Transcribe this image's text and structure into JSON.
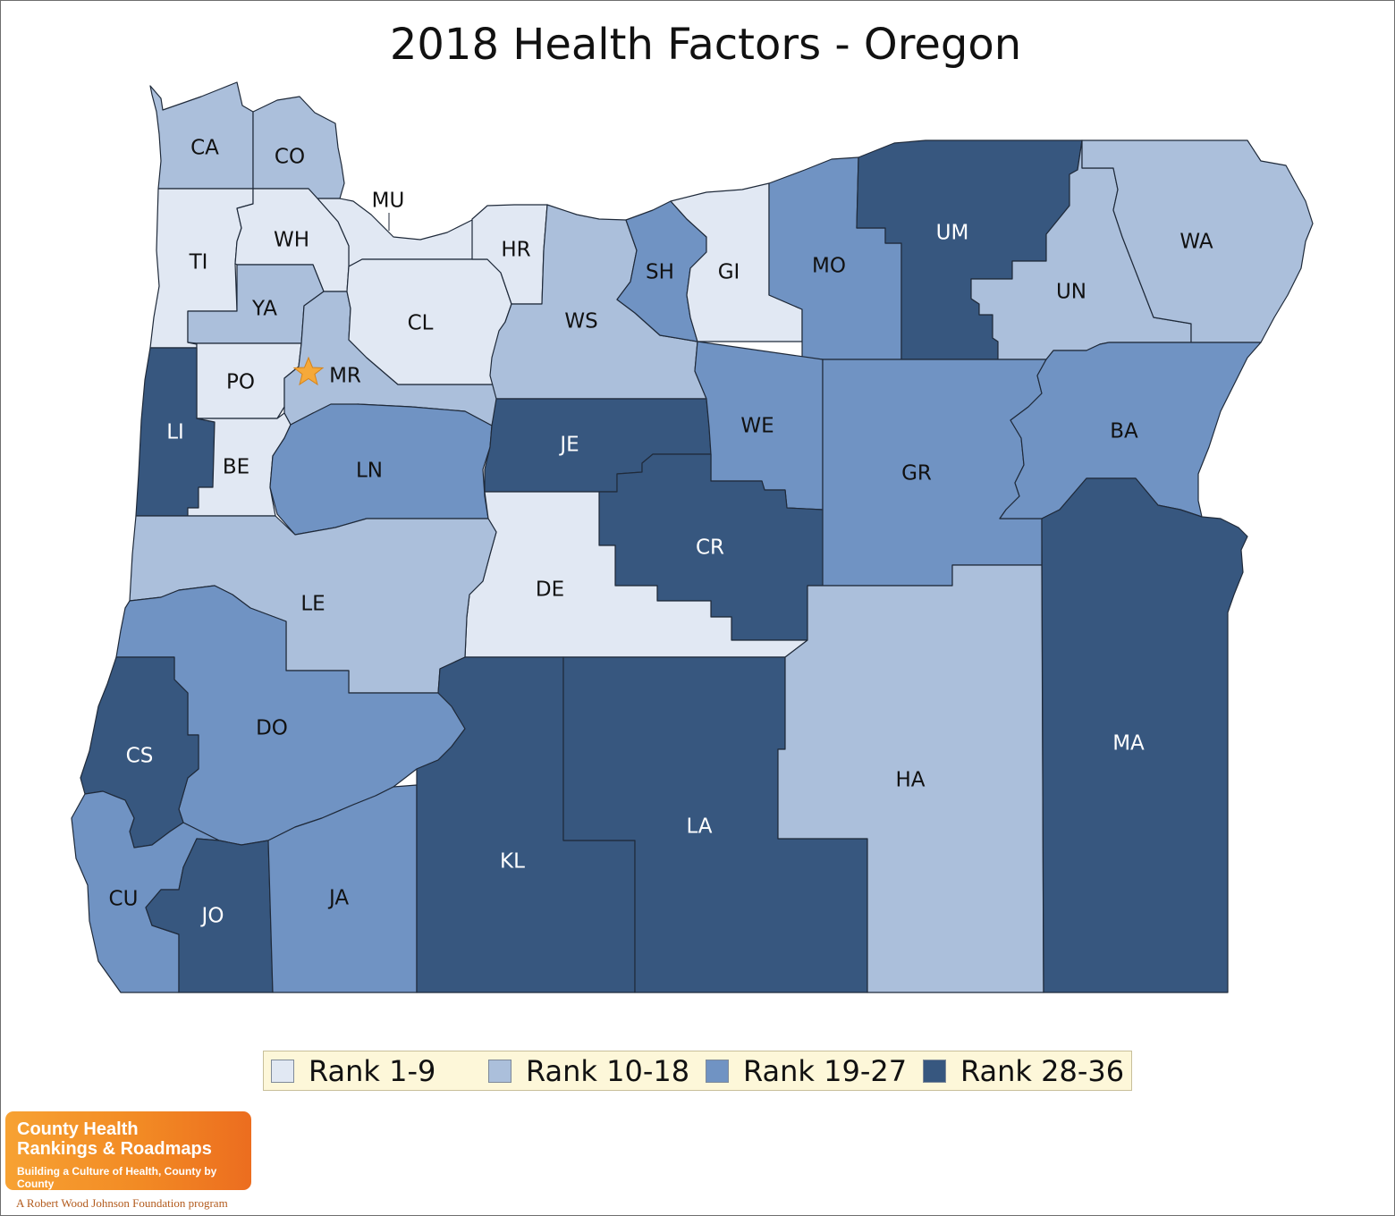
{
  "title": "2018 Health Factors - Oregon",
  "colors": {
    "rank_1_9": "#e1e8f3",
    "rank_10_18": "#abbfdb",
    "rank_19_27": "#7093c3",
    "rank_28_36": "#37577f",
    "text_dark": "#111111",
    "text_light": "#ffffff",
    "capital_star": "#f5a93a"
  },
  "legend": {
    "items": [
      {
        "label": "Rank 1-9",
        "color": "#e1e8f3"
      },
      {
        "label": "Rank 10-18",
        "color": "#abbfdb"
      },
      {
        "label": "Rank 19-27",
        "color": "#7093c3"
      },
      {
        "label": "Rank 28-36",
        "color": "#37577f"
      }
    ]
  },
  "counties": {
    "CA": {
      "label": "CA",
      "rank_group": "10-18"
    },
    "CO": {
      "label": "CO",
      "rank_group": "10-18"
    },
    "MU": {
      "label": "MU",
      "rank_group": "1-9"
    },
    "TI": {
      "label": "TI",
      "rank_group": "1-9"
    },
    "WH": {
      "label": "WH",
      "rank_group": "1-9"
    },
    "YA": {
      "label": "YA",
      "rank_group": "10-18"
    },
    "PO": {
      "label": "PO",
      "rank_group": "1-9"
    },
    "MR": {
      "label": "MR",
      "rank_group": "10-18"
    },
    "CL": {
      "label": "CL",
      "rank_group": "1-9"
    },
    "HR": {
      "label": "HR",
      "rank_group": "1-9"
    },
    "WS": {
      "label": "WS",
      "rank_group": "10-18"
    },
    "SH": {
      "label": "SH",
      "rank_group": "19-27"
    },
    "GI": {
      "label": "GI",
      "rank_group": "1-9"
    },
    "MO": {
      "label": "MO",
      "rank_group": "19-27"
    },
    "UM": {
      "label": "UM",
      "rank_group": "28-36"
    },
    "UN": {
      "label": "UN",
      "rank_group": "10-18"
    },
    "WA": {
      "label": "WA",
      "rank_group": "10-18"
    },
    "LI": {
      "label": "LI",
      "rank_group": "28-36"
    },
    "BE": {
      "label": "BE",
      "rank_group": "1-9"
    },
    "LN": {
      "label": "LN",
      "rank_group": "19-27"
    },
    "JE": {
      "label": "JE",
      "rank_group": "28-36"
    },
    "WE": {
      "label": "WE",
      "rank_group": "19-27"
    },
    "GR": {
      "label": "GR",
      "rank_group": "19-27"
    },
    "BA": {
      "label": "BA",
      "rank_group": "19-27"
    },
    "CR": {
      "label": "CR",
      "rank_group": "28-36"
    },
    "DE": {
      "label": "DE",
      "rank_group": "1-9"
    },
    "LE": {
      "label": "LE",
      "rank_group": "10-18"
    },
    "DO": {
      "label": "DO",
      "rank_group": "19-27"
    },
    "CS": {
      "label": "CS",
      "rank_group": "28-36"
    },
    "CU": {
      "label": "CU",
      "rank_group": "19-27"
    },
    "JO": {
      "label": "JO",
      "rank_group": "28-36"
    },
    "JA": {
      "label": "JA",
      "rank_group": "19-27"
    },
    "KL": {
      "label": "KL",
      "rank_group": "28-36"
    },
    "LA": {
      "label": "LA",
      "rank_group": "28-36"
    },
    "HA": {
      "label": "HA",
      "rank_group": "10-18"
    },
    "MA": {
      "label": "MA",
      "rank_group": "28-36"
    }
  },
  "logo": {
    "line1": "County Health",
    "line2": "Rankings & Roadmaps",
    "tagline": "Building a Culture of Health, County by County",
    "footer": "A Robert Wood Johnson Foundation program"
  }
}
